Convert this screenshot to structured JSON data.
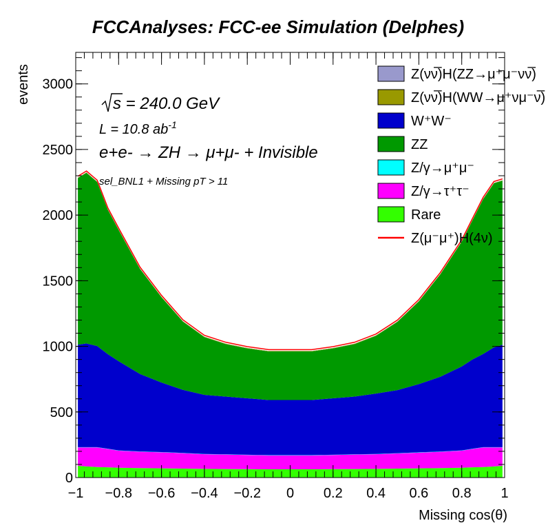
{
  "chart_data": {
    "type": "area",
    "title": "FCCAnalyses: FCC-ee Simulation (Delphes)",
    "xlabel": "Missing cos(θ)",
    "ylabel": "events",
    "xlim": [
      -1,
      1
    ],
    "ylim": [
      0,
      3240
    ],
    "xticks": [
      -1,
      -0.8,
      -0.6,
      -0.4,
      -0.2,
      0,
      0.2,
      0.4,
      0.6,
      0.8,
      1
    ],
    "xtick_labels": [
      "−1",
      "−0.8",
      "−0.6",
      "−0.4",
      "−0.2",
      "0",
      "0.2",
      "0.4",
      "0.6",
      "0.8",
      "1"
    ],
    "yticks": [
      0,
      500,
      1000,
      1500,
      2000,
      2500,
      3000
    ],
    "ytick_labels": [
      "0",
      "500",
      "1000",
      "1500",
      "2000",
      "2500",
      "3000"
    ],
    "stacked": true,
    "legend_position": "top-right",
    "annotations": {
      "sqrt_s": "s = 240.0 GeV",
      "lumi": "L = 10.8 ab",
      "lumi_exp": "-1",
      "process": "e+e- → ZH → μ+μ- + Invisible",
      "selection": "sel_BNL1 + Missing pT > 11"
    },
    "x": [
      -0.99,
      -0.95,
      -0.9,
      -0.85,
      -0.8,
      -0.7,
      -0.6,
      -0.5,
      -0.4,
      -0.3,
      -0.2,
      -0.1,
      0.0,
      0.1,
      0.2,
      0.3,
      0.4,
      0.5,
      0.6,
      0.7,
      0.8,
      0.85,
      0.9,
      0.95,
      0.99
    ],
    "series": [
      {
        "name": "Rare",
        "color": "#33ff00",
        "values": [
          90,
          85,
          80,
          78,
          75,
          72,
          70,
          68,
          66,
          65,
          64,
          63,
          63,
          63,
          64,
          65,
          66,
          68,
          70,
          72,
          75,
          78,
          80,
          85,
          90
        ]
      },
      {
        "name": "Z/γ→τ⁺τ⁻",
        "color": "#ff00ff",
        "values": [
          140,
          145,
          150,
          140,
          130,
          125,
          122,
          118,
          112,
          110,
          108,
          106,
          106,
          106,
          108,
          110,
          112,
          116,
          120,
          124,
          130,
          140,
          150,
          145,
          140
        ]
      },
      {
        "name": "Z/γ→μ⁺μ⁻",
        "color": "#00ffff",
        "values": [
          2,
          2,
          2,
          2,
          2,
          2,
          2,
          2,
          2,
          2,
          2,
          2,
          2,
          2,
          2,
          2,
          2,
          2,
          2,
          2,
          2,
          2,
          2,
          2,
          2
        ]
      },
      {
        "name": "W⁺W⁻",
        "color": "#0000cc",
        "values": [
          780,
          790,
          770,
          720,
          680,
          590,
          530,
          480,
          450,
          440,
          430,
          420,
          420,
          420,
          430,
          440,
          460,
          480,
          520,
          570,
          640,
          680,
          710,
          760,
          780
        ]
      },
      {
        "name": "ZZ",
        "color": "#009900",
        "values": [
          1270,
          1300,
          1250,
          1100,
          1000,
          800,
          650,
          520,
          440,
          400,
          380,
          370,
          370,
          370,
          380,
          400,
          440,
          520,
          630,
          780,
          950,
          1060,
          1180,
          1250,
          1250
        ]
      },
      {
        "name": "Z(νν̅)H(WW→μ⁺νμ⁻ν̅)",
        "color": "#999900",
        "values": [
          3,
          3,
          3,
          3,
          3,
          3,
          3,
          3,
          3,
          3,
          3,
          3,
          3,
          3,
          3,
          3,
          3,
          3,
          3,
          3,
          3,
          3,
          3,
          3,
          3
        ]
      },
      {
        "name": "Z(νν̅)H(ZZ→μ⁺μ⁻νν̅)",
        "color": "#9999cc",
        "values": [
          1,
          1,
          1,
          1,
          1,
          1,
          1,
          1,
          1,
          1,
          1,
          1,
          1,
          1,
          1,
          1,
          1,
          1,
          1,
          1,
          1,
          1,
          1,
          1,
          1
        ]
      },
      {
        "name": "Z(μ⁻μ⁺)H(4ν)",
        "color": "#ff0000",
        "type": "line",
        "values": [
          10,
          10,
          10,
          10,
          10,
          10,
          10,
          10,
          10,
          10,
          10,
          10,
          10,
          10,
          10,
          10,
          10,
          10,
          10,
          10,
          10,
          10,
          10,
          10,
          10
        ]
      }
    ]
  },
  "legend": [
    {
      "label": "Z(νν̅)H(ZZ→μ⁺μ⁻νν̅)",
      "color": "#9999cc",
      "kind": "box"
    },
    {
      "label": "Z(νν̅)H(WW→μ⁺νμ⁻ν̅)",
      "color": "#999900",
      "kind": "box"
    },
    {
      "label": "W⁺W⁻",
      "color": "#0000cc",
      "kind": "box"
    },
    {
      "label": "ZZ",
      "color": "#009900",
      "kind": "box"
    },
    {
      "label": "Z/γ→μ⁺μ⁻",
      "color": "#00ffff",
      "kind": "box"
    },
    {
      "label": "Z/γ→τ⁺τ⁻",
      "color": "#ff00ff",
      "kind": "box"
    },
    {
      "label": "Rare",
      "color": "#33ff00",
      "kind": "box"
    },
    {
      "label": "Z(μ⁻μ⁺)H(4ν)",
      "color": "#ff0000",
      "kind": "line"
    }
  ]
}
